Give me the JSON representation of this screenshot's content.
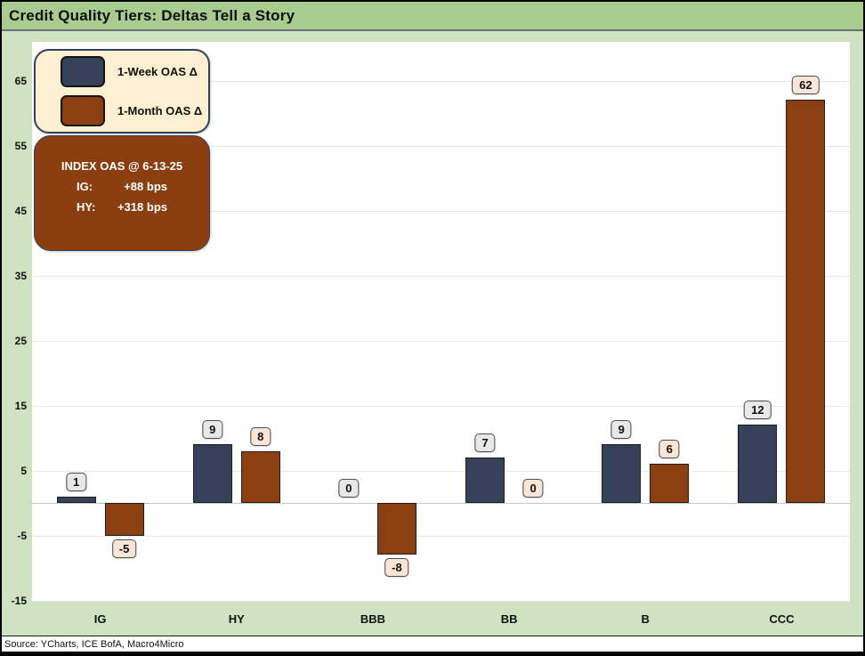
{
  "title": "Credit Quality Tiers: Deltas Tell a Story",
  "source": "Source: YCharts, ICE BofA, Macro4Micro",
  "legend": {
    "items": [
      {
        "label": "1-Week OAS Δ",
        "color": "#36415a"
      },
      {
        "label": "1-Month OAS Δ",
        "color": "#8c3f10"
      }
    ]
  },
  "info_box": {
    "title": "INDEX OAS @ 6-13-25",
    "rows": [
      {
        "label": "IG:",
        "value": "+88 bps"
      },
      {
        "label": "HY:",
        "value": "+318 bps"
      }
    ],
    "bg": "#8b3e10"
  },
  "chart_data": {
    "type": "bar",
    "title": "Credit Quality Tiers: Deltas Tell a Story",
    "categories": [
      "IG",
      "HY",
      "BBB",
      "BB",
      "B",
      "CCC"
    ],
    "series": [
      {
        "name": "1-Week OAS Δ",
        "color": "#36415a",
        "label_bg": "#e8e8e8",
        "values": [
          1,
          9,
          0,
          7,
          9,
          12
        ]
      },
      {
        "name": "1-Month OAS Δ",
        "color": "#8c3f10",
        "label_bg": "#fbe5d7",
        "values": [
          -5,
          8,
          -8,
          0,
          6,
          62
        ]
      }
    ],
    "xlabel": "",
    "ylabel": "",
    "y_ticks": [
      -15,
      -5,
      5,
      15,
      25,
      35,
      45,
      55,
      65
    ],
    "ylim": [
      -15.5,
      71
    ],
    "grid": true,
    "zero_line": true,
    "legend_position": "top-left",
    "units": "bps"
  },
  "colors": {
    "title_bar_bg": "#a8cc8f",
    "canvas_bg": "#cfe2c1",
    "plot_bg": "#ffffff",
    "week_bar": "#36415a",
    "month_bar": "#8c3f10",
    "info_box_bg": "#8b3e10",
    "legend_bg": "#fdf0d2",
    "week_label_bg": "#e8e8e8",
    "month_label_bg": "#fbe5d7",
    "gridline": "#e9e9e9",
    "zero_line": "#c4c4c4"
  }
}
